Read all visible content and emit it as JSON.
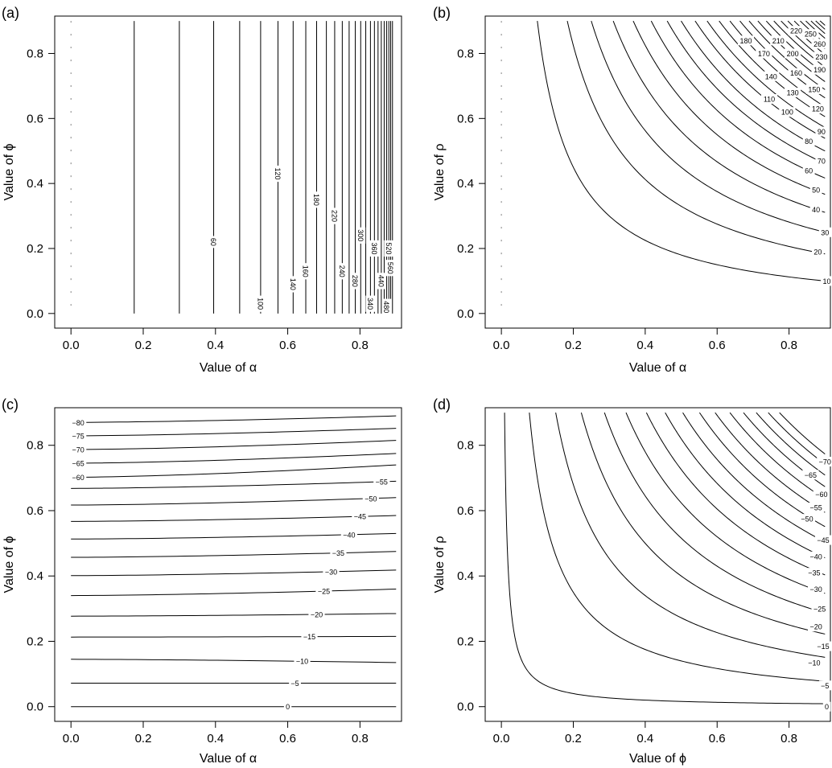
{
  "figure": {
    "background": "#ffffff",
    "ink": "#000000"
  },
  "chart_data": [
    {
      "id": "a",
      "type": "contour",
      "panel_label": "(a)",
      "xlabel": "Value of α",
      "ylabel": "Value of ϕ",
      "xlim": [
        -0.045,
        0.915
      ],
      "ylim": [
        -0.045,
        0.915
      ],
      "xticks": [
        "0.0",
        "0.2",
        "0.4",
        "0.6",
        "0.8"
      ],
      "yticks": [
        "0.0",
        "0.2",
        "0.4",
        "0.6",
        "0.8"
      ],
      "contour_x_values": [
        0.175,
        0.3,
        0.395,
        0.467,
        0.525,
        0.573,
        0.615,
        0.65,
        0.68,
        0.707,
        0.73,
        0.751,
        0.77,
        0.787,
        0.802,
        0.816,
        0.829,
        0.84,
        0.85,
        0.859,
        0.867,
        0.874,
        0.88,
        0.885,
        0.89
      ],
      "labels": [
        {
          "text": "60",
          "x": 0.395,
          "y": 0.22
        },
        {
          "text": "100",
          "x": 0.525,
          "y": 0.03
        },
        {
          "text": "120",
          "x": 0.573,
          "y": 0.43
        },
        {
          "text": "140",
          "x": 0.615,
          "y": 0.09
        },
        {
          "text": "160",
          "x": 0.65,
          "y": 0.13
        },
        {
          "text": "180",
          "x": 0.68,
          "y": 0.35
        },
        {
          "text": "220",
          "x": 0.73,
          "y": 0.3
        },
        {
          "text": "240",
          "x": 0.751,
          "y": 0.13
        },
        {
          "text": "280",
          "x": 0.787,
          "y": 0.1
        },
        {
          "text": "300",
          "x": 0.802,
          "y": 0.24
        },
        {
          "text": "340",
          "x": 0.829,
          "y": 0.03
        },
        {
          "text": "360",
          "x": 0.84,
          "y": 0.2
        },
        {
          "text": "440",
          "x": 0.859,
          "y": 0.1
        },
        {
          "text": "480",
          "x": 0.874,
          "y": 0.02
        },
        {
          "text": "520",
          "x": 0.88,
          "y": 0.2
        },
        {
          "text": "560",
          "x": 0.885,
          "y": 0.14
        }
      ],
      "left_edge_x": 0.0
    },
    {
      "id": "b",
      "type": "contour",
      "panel_label": "(b)",
      "xlabel": "Value of α",
      "ylabel": "Value of ρ",
      "xlim": [
        -0.045,
        0.915
      ],
      "ylim": [
        -0.045,
        0.915
      ],
      "xticks": [
        "0.0",
        "0.2",
        "0.4",
        "0.6",
        "0.8"
      ],
      "yticks": [
        "0.0",
        "0.2",
        "0.4",
        "0.6",
        "0.8"
      ],
      "contour_products": [
        0.09,
        0.165,
        0.225,
        0.28,
        0.33,
        0.375,
        0.415,
        0.45,
        0.485,
        0.515,
        0.545,
        0.572,
        0.597,
        0.62,
        0.642,
        0.663,
        0.682,
        0.7,
        0.717,
        0.733,
        0.748,
        0.762,
        0.775,
        0.787,
        0.798
      ],
      "labels": [
        {
          "text": "10",
          "x": 0.905,
          "y": 0.1
        },
        {
          "text": "20",
          "x": 0.88,
          "y": 0.19
        },
        {
          "text": "30",
          "x": 0.9,
          "y": 0.25
        },
        {
          "text": "40",
          "x": 0.875,
          "y": 0.32
        },
        {
          "text": "50",
          "x": 0.875,
          "y": 0.38
        },
        {
          "text": "60",
          "x": 0.855,
          "y": 0.44
        },
        {
          "text": "70",
          "x": 0.89,
          "y": 0.47
        },
        {
          "text": "80",
          "x": 0.855,
          "y": 0.53
        },
        {
          "text": "90",
          "x": 0.89,
          "y": 0.56
        },
        {
          "text": "100",
          "x": 0.795,
          "y": 0.62
        },
        {
          "text": "110",
          "x": 0.745,
          "y": 0.66
        },
        {
          "text": "120",
          "x": 0.88,
          "y": 0.63
        },
        {
          "text": "130",
          "x": 0.81,
          "y": 0.68
        },
        {
          "text": "140",
          "x": 0.75,
          "y": 0.73
        },
        {
          "text": "150",
          "x": 0.87,
          "y": 0.69
        },
        {
          "text": "160",
          "x": 0.82,
          "y": 0.74
        },
        {
          "text": "170",
          "x": 0.73,
          "y": 0.8
        },
        {
          "text": "180",
          "x": 0.68,
          "y": 0.84
        },
        {
          "text": "190",
          "x": 0.885,
          "y": 0.75
        },
        {
          "text": "200",
          "x": 0.81,
          "y": 0.8
        },
        {
          "text": "210",
          "x": 0.77,
          "y": 0.84
        },
        {
          "text": "220",
          "x": 0.82,
          "y": 0.87
        },
        {
          "text": "230",
          "x": 0.89,
          "y": 0.79
        },
        {
          "text": "250",
          "x": 0.86,
          "y": 0.86
        },
        {
          "text": "260",
          "x": 0.885,
          "y": 0.83
        }
      ],
      "left_edge_x": 0.0
    },
    {
      "id": "c",
      "type": "contour",
      "panel_label": "(c)",
      "xlabel": "Value of α",
      "ylabel": "Value of ϕ",
      "xlim": [
        -0.045,
        0.915
      ],
      "ylim": [
        -0.045,
        0.915
      ],
      "xticks": [
        "0.0",
        "0.2",
        "0.4",
        "0.6",
        "0.8"
      ],
      "yticks": [
        "0.0",
        "0.2",
        "0.4",
        "0.6",
        "0.8"
      ],
      "levels": [
        {
          "text": "0",
          "y_left": 0.0,
          "y_right": 0.0,
          "label_x": 0.6
        },
        {
          "text": "−5",
          "y_left": 0.072,
          "y_right": 0.072,
          "label_x": 0.62
        },
        {
          "text": "−10",
          "y_left": 0.145,
          "y_right": 0.135,
          "label_x": 0.64
        },
        {
          "text": "−15",
          "y_left": 0.213,
          "y_right": 0.215,
          "label_x": 0.66
        },
        {
          "text": "−20",
          "y_left": 0.277,
          "y_right": 0.285,
          "label_x": 0.68
        },
        {
          "text": "−25",
          "y_left": 0.34,
          "y_right": 0.36,
          "label_x": 0.7
        },
        {
          "text": "−30",
          "y_left": 0.401,
          "y_right": 0.418,
          "label_x": 0.72
        },
        {
          "text": "−35",
          "y_left": 0.457,
          "y_right": 0.475,
          "label_x": 0.74
        },
        {
          "text": "−40",
          "y_left": 0.513,
          "y_right": 0.53,
          "label_x": 0.77
        },
        {
          "text": "−45",
          "y_left": 0.567,
          "y_right": 0.585,
          "label_x": 0.8
        },
        {
          "text": "−50",
          "y_left": 0.617,
          "y_right": 0.64,
          "label_x": 0.83
        },
        {
          "text": "−55",
          "y_left": 0.668,
          "y_right": 0.69,
          "label_x": 0.86
        },
        {
          "text": "−60",
          "y_left": 0.702,
          "y_right": 0.74,
          "label_x": 0.02
        },
        {
          "text": "−65",
          "y_left": 0.745,
          "y_right": 0.775,
          "label_x": 0.02
        },
        {
          "text": "−70",
          "y_left": 0.787,
          "y_right": 0.815,
          "label_x": 0.02
        },
        {
          "text": "−75",
          "y_left": 0.829,
          "y_right": 0.852,
          "label_x": 0.02
        },
        {
          "text": "−80",
          "y_left": 0.87,
          "y_right": 0.89,
          "label_x": 0.02
        }
      ]
    },
    {
      "id": "d",
      "type": "contour",
      "panel_label": "(d)",
      "xlabel": "Value of ϕ",
      "ylabel": "Value of ρ",
      "xlim": [
        -0.045,
        0.915
      ],
      "ylim": [
        -0.045,
        0.915
      ],
      "xticks": [
        "0.0",
        "0.2",
        "0.4",
        "0.6",
        "0.8"
      ],
      "yticks": [
        "0.0",
        "0.2",
        "0.4",
        "0.6",
        "0.8"
      ],
      "contour_products": [
        0.008,
        0.07,
        0.136,
        0.2,
        0.258,
        0.312,
        0.363,
        0.41,
        0.454,
        0.496,
        0.535,
        0.572,
        0.606,
        0.638,
        0.668,
        0.696
      ],
      "labels": [
        {
          "text": "0",
          "x": 0.905,
          "y": 0.0
        },
        {
          "text": "−5",
          "x": 0.9,
          "y": 0.065
        },
        {
          "text": "−10",
          "x": 0.87,
          "y": 0.135
        },
        {
          "text": "−15",
          "x": 0.895,
          "y": 0.185
        },
        {
          "text": "−20",
          "x": 0.875,
          "y": 0.245
        },
        {
          "text": "−25",
          "x": 0.885,
          "y": 0.3
        },
        {
          "text": "−30",
          "x": 0.875,
          "y": 0.36
        },
        {
          "text": "−35",
          "x": 0.87,
          "y": 0.41
        },
        {
          "text": "−40",
          "x": 0.875,
          "y": 0.46
        },
        {
          "text": "−45",
          "x": 0.895,
          "y": 0.51
        },
        {
          "text": "−50",
          "x": 0.85,
          "y": 0.575
        },
        {
          "text": "−55",
          "x": 0.875,
          "y": 0.61
        },
        {
          "text": "−60",
          "x": 0.89,
          "y": 0.65
        },
        {
          "text": "−65",
          "x": 0.86,
          "y": 0.71
        },
        {
          "text": "−70",
          "x": 0.9,
          "y": 0.75
        }
      ]
    }
  ]
}
